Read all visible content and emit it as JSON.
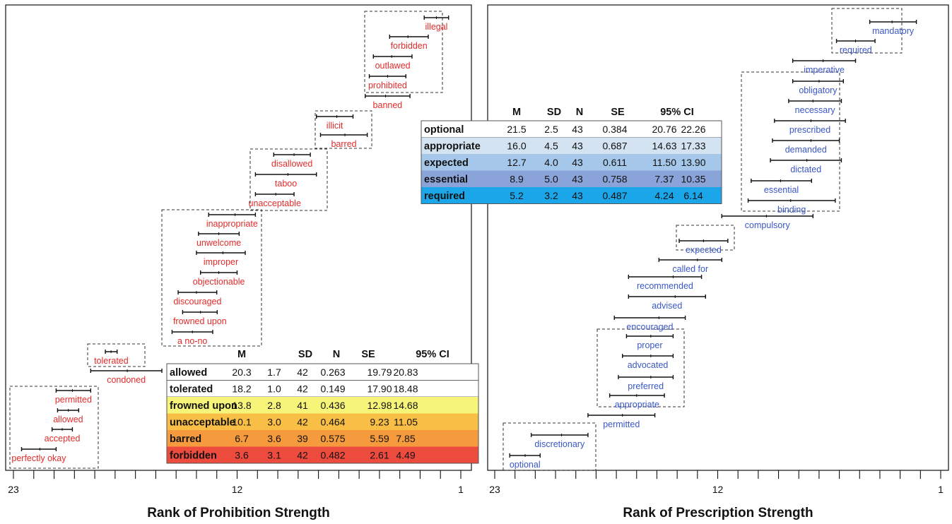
{
  "colors": {
    "prohibition_term": "#e52b2b",
    "prescription_term": "#3a57c8",
    "interval": "#111111",
    "group_box": "#333333"
  },
  "chart_data": [
    {
      "type": "interval",
      "panel": "left",
      "xlabel": "Rank of Prohibition Strength",
      "xlim": [
        23,
        1
      ],
      "x_ticks": [
        23,
        12,
        1
      ],
      "terms": [
        {
          "label": "illegal",
          "lo": 1.6,
          "mean": 2.2,
          "hi": 2.8
        },
        {
          "label": "forbidden",
          "lo": 2.6,
          "mean": 3.6,
          "hi": 4.5
        },
        {
          "label": "outlawed",
          "lo": 3.4,
          "mean": 4.4,
          "hi": 5.3
        },
        {
          "label": "prohibited",
          "lo": 3.7,
          "mean": 4.6,
          "hi": 5.5
        },
        {
          "label": "banned",
          "lo": 3.5,
          "mean": 4.7,
          "hi": 5.7
        },
        {
          "label": "illicit",
          "lo": 6.3,
          "mean": 7.1,
          "hi": 8.1
        },
        {
          "label": "barred",
          "lo": 5.6,
          "mean": 6.7,
          "hi": 7.9
        },
        {
          "label": "disallowed",
          "lo": 8.4,
          "mean": 9.2,
          "hi": 10.2
        },
        {
          "label": "taboo",
          "lo": 8.1,
          "mean": 9.5,
          "hi": 11.1
        },
        {
          "label": "unacceptable",
          "lo": 9.2,
          "mean": 10.1,
          "hi": 11.1
        },
        {
          "label": "inappropriate",
          "lo": 11.1,
          "mean": 12.1,
          "hi": 13.4
        },
        {
          "label": "unwelcome",
          "lo": 11.9,
          "mean": 12.9,
          "hi": 13.9
        },
        {
          "label": "improper",
          "lo": 11.6,
          "mean": 12.7,
          "hi": 14.0
        },
        {
          "label": "objectionable",
          "lo": 12.0,
          "mean": 12.9,
          "hi": 13.8
        },
        {
          "label": "discouraged",
          "lo": 13.0,
          "mean": 14.0,
          "hi": 14.9
        },
        {
          "label": "frowned upon",
          "lo": 12.98,
          "mean": 13.8,
          "hi": 14.68
        },
        {
          "label": "a no-no",
          "lo": 13.2,
          "mean": 14.2,
          "hi": 15.2
        },
        {
          "label": "tolerated",
          "lo": 17.9,
          "mean": 18.2,
          "hi": 18.48
        },
        {
          "label": "condoned",
          "lo": 15.7,
          "mean": 17.4,
          "hi": 19.2
        },
        {
          "label": "permitted",
          "lo": 19.2,
          "mean": 20.1,
          "hi": 20.9
        },
        {
          "label": "allowed",
          "lo": 19.79,
          "mean": 20.3,
          "hi": 20.83
        },
        {
          "label": "accepted",
          "lo": 20.1,
          "mean": 20.6,
          "hi": 21.1
        },
        {
          "label": "perfectly okay",
          "lo": 20.9,
          "mean": 21.7,
          "hi": 22.6
        }
      ],
      "table": {
        "headers": [
          "M",
          "SD",
          "N",
          "SE",
          "95% CI"
        ],
        "rows": [
          {
            "term": "allowed",
            "M": "20.3",
            "SD": "1.7",
            "N": "42",
            "SE": "0.263",
            "CI_low": "19.79",
            "CI_high": "20.83",
            "color": "#ffffff"
          },
          {
            "term": "tolerated",
            "M": "18.2",
            "SD": "1.0",
            "N": "42",
            "SE": "0.149",
            "CI_low": "17.90",
            "CI_high": "18.48",
            "color": "#ffffff"
          },
          {
            "term": "frowned upon",
            "M": "13.8",
            "SD": "2.8",
            "N": "41",
            "SE": "0.436",
            "CI_low": "12.98",
            "CI_high": "14.68",
            "color": "#f6f57a"
          },
          {
            "term": "unacceptable",
            "M": "10.1",
            "SD": "3.0",
            "N": "42",
            "SE": "0.464",
            "CI_low": "9.23",
            "CI_high": "11.05",
            "color": "#f8be45"
          },
          {
            "term": "barred",
            "M": "6.7",
            "SD": "3.6",
            "N": "39",
            "SE": "0.575",
            "CI_low": "5.59",
            "CI_high": "7.85",
            "color": "#f59b3d"
          },
          {
            "term": "forbidden",
            "M": "3.6",
            "SD": "3.1",
            "N": "42",
            "SE": "0.482",
            "CI_low": "2.61",
            "CI_high": "4.49",
            "color": "#ee4b3f"
          }
        ]
      }
    },
    {
      "type": "interval",
      "panel": "right",
      "xlabel": "Rank of Prescription Strength",
      "xlim": [
        23,
        1
      ],
      "x_ticks": [
        23,
        12,
        1
      ],
      "terms": [
        {
          "label": "mandatory",
          "lo": 2.2,
          "mean": 3.4,
          "hi": 4.5
        },
        {
          "label": "required",
          "lo": 4.24,
          "mean": 5.2,
          "hi": 6.14
        },
        {
          "label": "imperative",
          "lo": 5.2,
          "mean": 6.8,
          "hi": 8.3
        },
        {
          "label": "obligatory",
          "lo": 5.8,
          "mean": 7.0,
          "hi": 8.3
        },
        {
          "label": "necessary",
          "lo": 5.9,
          "mean": 7.3,
          "hi": 8.5
        },
        {
          "label": "prescribed",
          "lo": 5.7,
          "mean": 7.4,
          "hi": 9.2
        },
        {
          "label": "demanded",
          "lo": 6.0,
          "mean": 7.4,
          "hi": 9.3
        },
        {
          "label": "dictated",
          "lo": 5.9,
          "mean": 7.6,
          "hi": 9.4
        },
        {
          "label": "essential",
          "lo": 7.37,
          "mean": 8.9,
          "hi": 10.35
        },
        {
          "label": "binding",
          "lo": 6.2,
          "mean": 8.4,
          "hi": 10.5
        },
        {
          "label": "compulsory",
          "lo": 7.3,
          "mean": 9.6,
          "hi": 11.8
        },
        {
          "label": "expected",
          "lo": 11.5,
          "mean": 12.7,
          "hi": 13.9
        },
        {
          "label": "called for",
          "lo": 11.8,
          "mean": 13.0,
          "hi": 14.9
        },
        {
          "label": "recommended",
          "lo": 12.8,
          "mean": 14.2,
          "hi": 16.4
        },
        {
          "label": "advised",
          "lo": 12.6,
          "mean": 14.1,
          "hi": 16.4
        },
        {
          "label": "encouraged",
          "lo": 13.6,
          "mean": 14.9,
          "hi": 17.1
        },
        {
          "label": "proper",
          "lo": 14.2,
          "mean": 15.3,
          "hi": 16.5
        },
        {
          "label": "advocated",
          "lo": 14.2,
          "mean": 15.3,
          "hi": 16.7
        },
        {
          "label": "preferred",
          "lo": 14.2,
          "mean": 15.3,
          "hi": 16.9
        },
        {
          "label": "appropriate",
          "lo": 14.63,
          "mean": 16.0,
          "hi": 17.33
        },
        {
          "label": "permitted",
          "lo": 15.1,
          "mean": 16.7,
          "hi": 18.4
        },
        {
          "label": "discretionary",
          "lo": 18.4,
          "mean": 19.7,
          "hi": 21.2
        },
        {
          "label": "optional",
          "lo": 20.76,
          "mean": 21.5,
          "hi": 22.26
        }
      ],
      "table": {
        "headers": [
          "M",
          "SD",
          "N",
          "SE",
          "95% CI"
        ],
        "rows": [
          {
            "term": "optional",
            "M": "21.5",
            "SD": "2.5",
            "N": "43",
            "SE": "0.384",
            "CI_low": "20.76",
            "CI_high": "22.26",
            "color": "#ffffff"
          },
          {
            "term": "appropriate",
            "M": "16.0",
            "SD": "4.5",
            "N": "43",
            "SE": "0.687",
            "CI_low": "14.63",
            "CI_high": "17.33",
            "color": "#d3e3f1"
          },
          {
            "term": "expected",
            "M": "12.7",
            "SD": "4.0",
            "N": "43",
            "SE": "0.611",
            "CI_low": "11.50",
            "CI_high": "13.90",
            "color": "#a5c7ea"
          },
          {
            "term": "essential",
            "M": "8.9",
            "SD": "5.0",
            "N": "43",
            "SE": "0.758",
            "CI_low": "7.37",
            "CI_high": "10.35",
            "color": "#8aa3d8"
          },
          {
            "term": "required",
            "M": "5.2",
            "SD": "3.2",
            "N": "43",
            "SE": "0.487",
            "CI_low": "4.24",
            "CI_high": "6.14",
            "color": "#1aa6e8"
          }
        ]
      }
    }
  ]
}
